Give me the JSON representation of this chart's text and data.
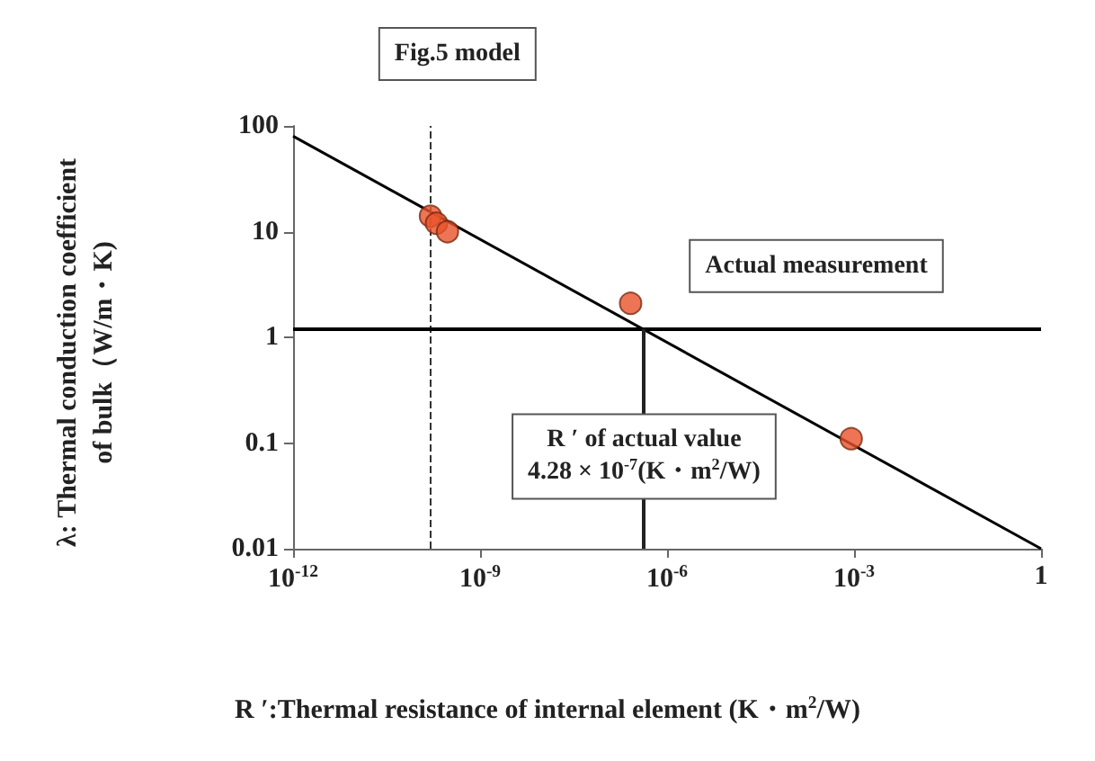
{
  "chart_data": {
    "type": "scatter",
    "xlabel": "R ′:Thermal resistance of internal element (K・m$^{2}$/W)",
    "ylabel": "λ: Thermal conduction coefficient\nof bulk（W/m・K)",
    "log": "xy",
    "xlim": [
      1e-12,
      1
    ],
    "ylim": [
      0.01,
      100
    ],
    "xticks": [
      {
        "value": 1e-12,
        "label": "10$^{-12}$"
      },
      {
        "value": 1e-09,
        "label": "10$^{-9}$"
      },
      {
        "value": 1e-06,
        "label": "10$^{-6}$"
      },
      {
        "value": 0.001,
        "label": "10$^{-3}$"
      },
      1
    ],
    "yticks": [
      0.01,
      0.1,
      1,
      10,
      100
    ],
    "grid": false,
    "marker": "circle",
    "series": [
      {
        "color": "#e8532a",
        "x": [
          1.6e-10,
          2e-10,
          3e-10,
          2.6e-07,
          0.0009
        ],
        "values": [
          14,
          12,
          10,
          2.1,
          0.11
        ]
      },
      {
        "type": "line",
        "marker": "none",
        "color": "#000000",
        "x": [
          1e-12,
          1
        ],
        "values": [
          80,
          0.01
        ]
      }
    ],
    "ref_lines": [
      {
        "axis": "x",
        "value": 1.6e-10,
        "label": "Fig.5 model",
        "line_style": "dashed",
        "color": "#333333"
      },
      {
        "axis": "y",
        "value": 1.2,
        "label": "Actual measurement",
        "line_style": "solid",
        "color": "#000000"
      },
      {
        "axis": "x",
        "value": 4.28e-07,
        "label": "R ′ of actual value\n4.28 × 10$^{-7}$(K・m$^{2}$/W)",
        "line_style": "solid",
        "color": "#222222"
      }
    ]
  }
}
